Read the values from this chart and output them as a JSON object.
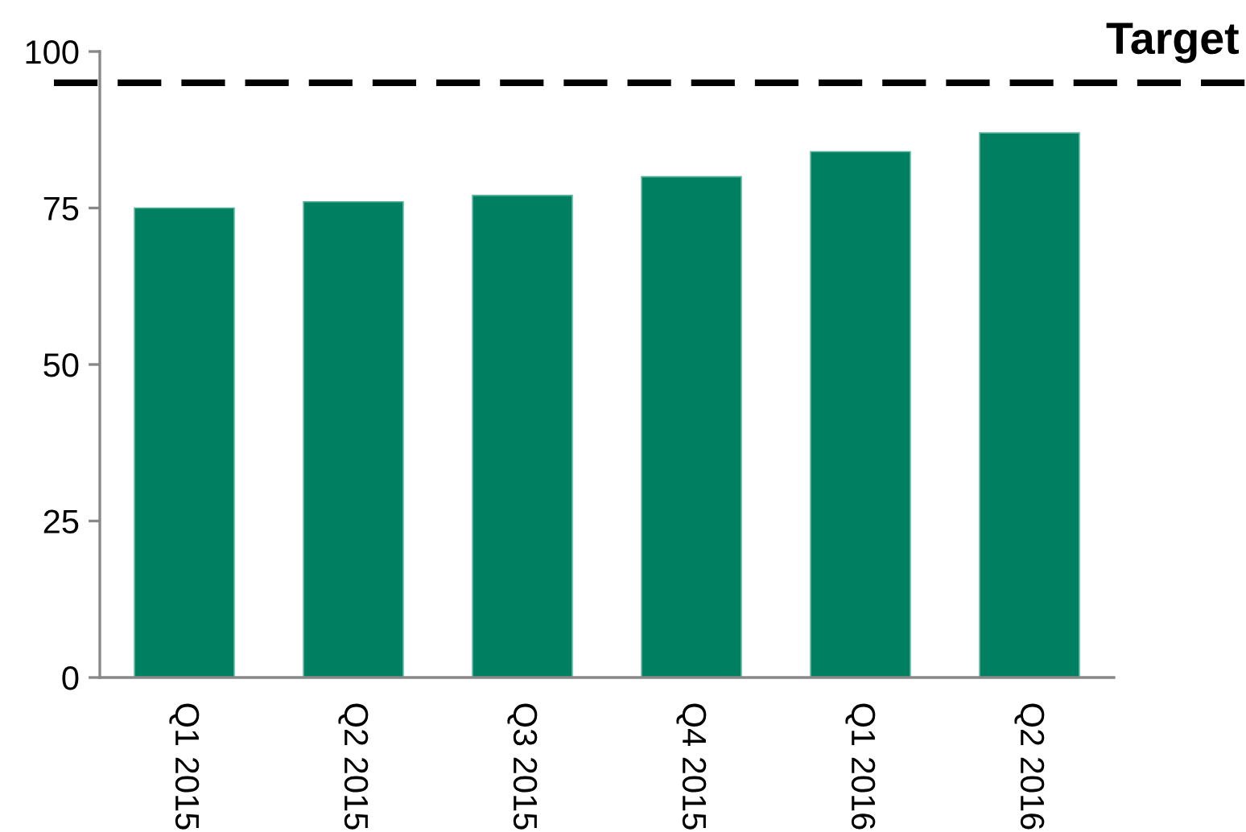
{
  "chart_data": {
    "type": "bar",
    "categories": [
      "Q1 2015",
      "Q2 2015",
      "Q3 2015",
      "Q4 2015",
      "Q1 2016",
      "Q2 2016"
    ],
    "values": [
      75,
      76,
      77,
      80,
      84,
      87
    ],
    "color": "#007f61",
    "ylim": [
      0,
      100
    ],
    "yticks": [
      0,
      25,
      50,
      75,
      100
    ],
    "grid": false,
    "ref_lines": [
      {
        "axis": "y",
        "value": 95,
        "label": "Target",
        "color": "#000000",
        "line_style": "dashed"
      }
    ]
  }
}
